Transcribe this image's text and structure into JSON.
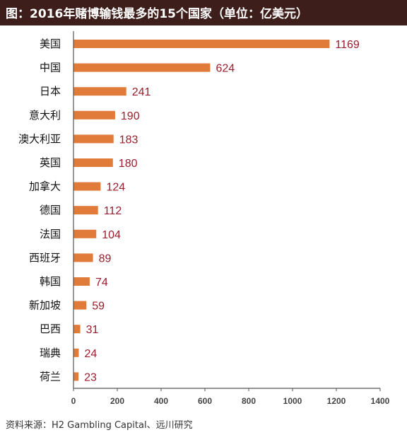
{
  "title": "图：2016年赌博输钱最多的15个国家（单位：亿美元）",
  "source": "资料来源：H2 Gambling Capital、远川研究",
  "colors": {
    "title_background": "#3d1e1a",
    "title_text": "#ffffff",
    "bar": "#e07b39",
    "value_label": "#9b1c2c",
    "axis": "#555555"
  },
  "chart_data": {
    "type": "bar",
    "orientation": "horizontal",
    "categories": [
      "美国",
      "中国",
      "日本",
      "意大利",
      "澳大利亚",
      "英国",
      "加拿大",
      "德国",
      "法国",
      "西班牙",
      "韩国",
      "新加坡",
      "巴西",
      "瑞典",
      "荷兰"
    ],
    "values": [
      1169,
      624,
      241,
      190,
      183,
      180,
      124,
      112,
      104,
      89,
      74,
      59,
      31,
      24,
      23
    ],
    "xlim": [
      0,
      1400
    ],
    "xticks": [
      0,
      200,
      400,
      600,
      800,
      1000,
      1200,
      1400
    ],
    "xlabel": "",
    "ylabel": "",
    "grid": false,
    "legend": "none"
  }
}
